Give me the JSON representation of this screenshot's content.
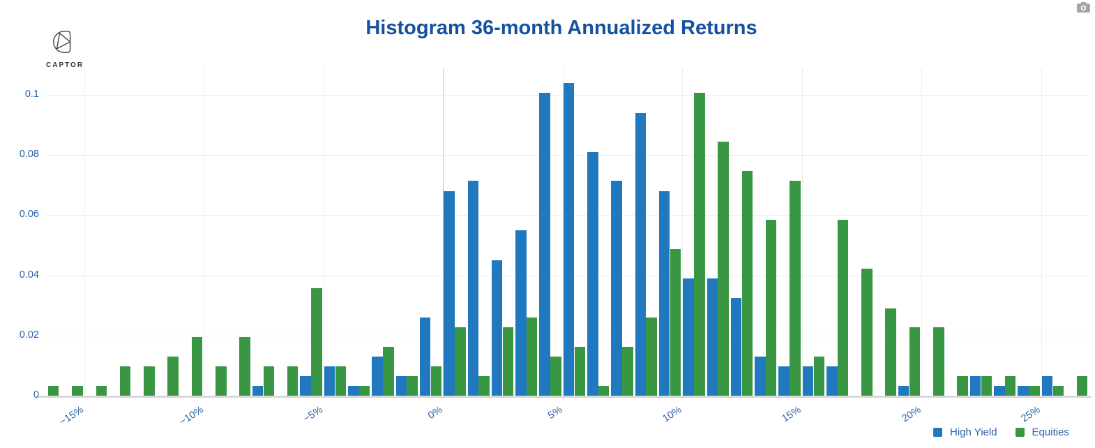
{
  "title": "Histogram 36-month Annualized Returns",
  "logo": {
    "text": "CAPTOR"
  },
  "modebar": {
    "camera_icon": "download-plot-as-png"
  },
  "legend": {
    "items": [
      {
        "label": "High Yield",
        "color": "#2079be"
      },
      {
        "label": "Equities",
        "color": "#399642"
      }
    ]
  },
  "chart_data": {
    "type": "bar",
    "subtype": "grouped-histogram",
    "title": "Histogram 36-month Annualized Returns",
    "xlabel": "",
    "ylabel": "",
    "grid": true,
    "legend_position": "bottom-right",
    "bin_width_percent": 1,
    "bin_left_edges_percent": [
      -17,
      -16,
      -15,
      -14,
      -13,
      -12,
      -11,
      -10,
      -9,
      -8,
      -7,
      -6,
      -5,
      -4,
      -3,
      -2,
      -1,
      0,
      1,
      2,
      3,
      4,
      5,
      6,
      7,
      8,
      9,
      10,
      11,
      12,
      13,
      14,
      15,
      16,
      17,
      18,
      19,
      20,
      21,
      22,
      23,
      24,
      25,
      26
    ],
    "series": [
      {
        "name": "High Yield",
        "color": "#2079be",
        "values": [
          0,
          0,
          0,
          0,
          0,
          0,
          0,
          0,
          0,
          0.0032,
          0,
          0.0065,
          0.0097,
          0.0032,
          0.013,
          0.0065,
          0.026,
          0.068,
          0.0714,
          0.045,
          0.055,
          0.1006,
          0.1038,
          0.081,
          0.0714,
          0.094,
          0.068,
          0.039,
          0.039,
          0.0325,
          0.013,
          0.0097,
          0.0097,
          0.0097,
          0,
          0,
          0.0032,
          0,
          0,
          0.0065,
          0.0032,
          0.0032,
          0.0065,
          0
        ]
      },
      {
        "name": "Equities",
        "color": "#399642",
        "values": [
          0.0032,
          0.0032,
          0.0032,
          0.0097,
          0.0097,
          0.013,
          0.0195,
          0.0097,
          0.0195,
          0.0097,
          0.0097,
          0.0357,
          0.0097,
          0.0032,
          0.0162,
          0.0065,
          0.0097,
          0.0227,
          0.0065,
          0.0227,
          0.026,
          0.013,
          0.0162,
          0.0032,
          0.0162,
          0.026,
          0.0487,
          0.1006,
          0.0843,
          0.0746,
          0.0584,
          0.0714,
          0.013,
          0.0584,
          0.0421,
          0.029,
          0.0227,
          0.0227,
          0.0065,
          0.0065,
          0.0065,
          0.0032,
          0.0032,
          0.0065
        ]
      }
    ],
    "x_tick_values": [
      -15,
      -10,
      -5,
      0,
      5,
      10,
      15,
      20,
      25
    ],
    "x_tick_labels": [
      "−15%",
      "−10%",
      "−5%",
      "0%",
      "5%",
      "10%",
      "15%",
      "20%",
      "25%"
    ],
    "y_tick_values": [
      0,
      0.02,
      0.04,
      0.06,
      0.08,
      0.1
    ],
    "y_tick_labels": [
      "0",
      "0.02",
      "0.04",
      "0.06",
      "0.08",
      "0.1"
    ],
    "xlim_percent": [
      -17.6,
      27
    ],
    "ylim": [
      0,
      0.109
    ]
  }
}
